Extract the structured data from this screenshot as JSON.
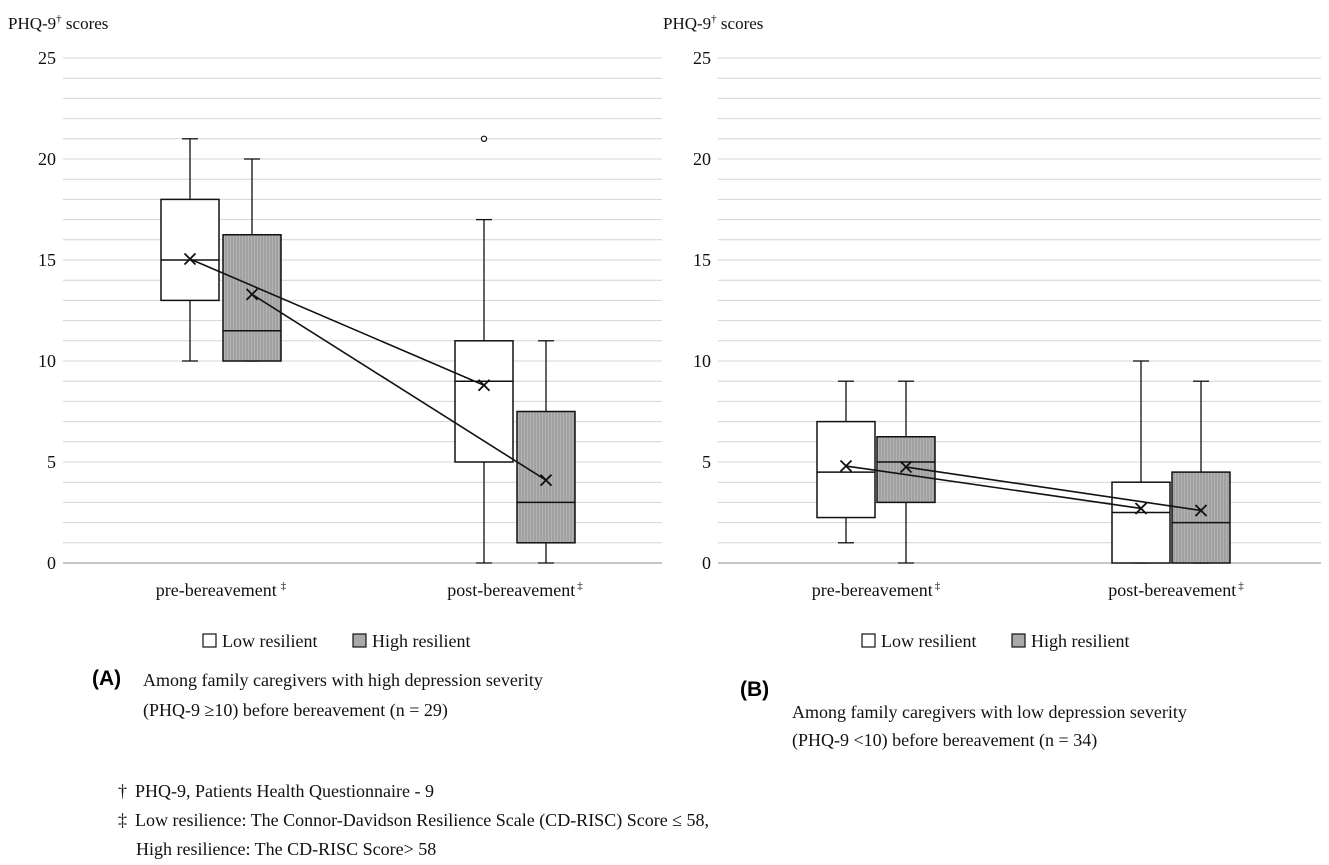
{
  "chart_data": [
    {
      "panel": "(A)",
      "type": "box",
      "ylabel": "PHQ-9",
      "ylabel_sup": "†",
      "ylabel_suffix": " scores",
      "ylim": [
        0,
        25
      ],
      "yticks": [
        "0",
        "5",
        "10",
        "15",
        "20",
        "25"
      ],
      "categories": [
        {
          "label": "pre-bereavement",
          "mark": "‡"
        },
        {
          "label": "post-bereavement",
          "mark": "‡"
        }
      ],
      "series": [
        {
          "name": "Low resilient",
          "fill": "#ffffff",
          "boxes": [
            {
              "min": 10,
              "q1": 13,
              "median": 15,
              "q3": 18,
              "max": 21,
              "mean": 15.05,
              "outliers": []
            },
            {
              "min": 0,
              "q1": 5,
              "median": 9,
              "q3": 11,
              "max": 17,
              "mean": 8.8,
              "outliers": [
                21
              ]
            }
          ]
        },
        {
          "name": "High resilient",
          "fill": "#a9a9a9",
          "boxes": [
            {
              "min": 10,
              "q1": 10,
              "median": 11.5,
              "q3": 16.25,
              "max": 20,
              "mean": 13.3,
              "outliers": []
            },
            {
              "min": 0,
              "q1": 1,
              "median": 3,
              "q3": 7.5,
              "max": 11,
              "mean": 4.1,
              "outliers": []
            }
          ]
        }
      ],
      "caption_line1": "Among family caregivers with high depression severity",
      "caption_line2": "(PHQ-9 ≥10) before bereavement    (n = 29)"
    },
    {
      "panel": "(B)",
      "type": "box",
      "ylabel": "PHQ-9",
      "ylabel_sup": "†",
      "ylabel_suffix": " scores",
      "ylim": [
        0,
        25
      ],
      "yticks": [
        "0",
        "5",
        "10",
        "15",
        "20",
        "25"
      ],
      "categories": [
        {
          "label": "pre-bereavement",
          "mark": "‡"
        },
        {
          "label": "post-bereavement",
          "mark": "‡"
        }
      ],
      "series": [
        {
          "name": "Low resilient",
          "fill": "#ffffff",
          "boxes": [
            {
              "min": 1,
              "q1": 2.25,
              "median": 4.5,
              "q3": 7,
              "max": 9,
              "mean": 4.8,
              "outliers": []
            },
            {
              "min": 0,
              "q1": 0,
              "median": 2.5,
              "q3": 4,
              "max": 10,
              "mean": 2.7,
              "outliers": []
            }
          ]
        },
        {
          "name": "High resilient",
          "fill": "#a9a9a9",
          "boxes": [
            {
              "min": 0,
              "q1": 3,
              "median": 5,
              "q3": 6.25,
              "max": 9,
              "mean": 4.75,
              "outliers": []
            },
            {
              "min": 0,
              "q1": 0,
              "median": 2,
              "q3": 4.5,
              "max": 9,
              "mean": 2.6,
              "outliers": []
            }
          ]
        }
      ],
      "caption_line1": "Among family caregivers with low depression severity",
      "caption_line2": "(PHQ-9 <10) before bereavement    (n = 34)"
    }
  ],
  "legend": {
    "low": "Low resilient",
    "high": "High resilient"
  },
  "footnotes": {
    "dagger_mark": "†",
    "dagger_text": "PHQ-9, Patients Health Questionnaire - 9",
    "ddagger_mark": "‡",
    "ddagger_line1": "Low resilience:  The Connor-Davidson Resilience Scale (CD-RISC) Score ≤ 58,",
    "ddagger_line2": "High resilience: The CD-RISC Score> 58"
  },
  "colors": {
    "grid": "#d4d4d4",
    "axis": "#8c8c8c",
    "ink": "#111111",
    "high_fill": "#a9a9a9",
    "hatch": "#8f8f8f"
  }
}
